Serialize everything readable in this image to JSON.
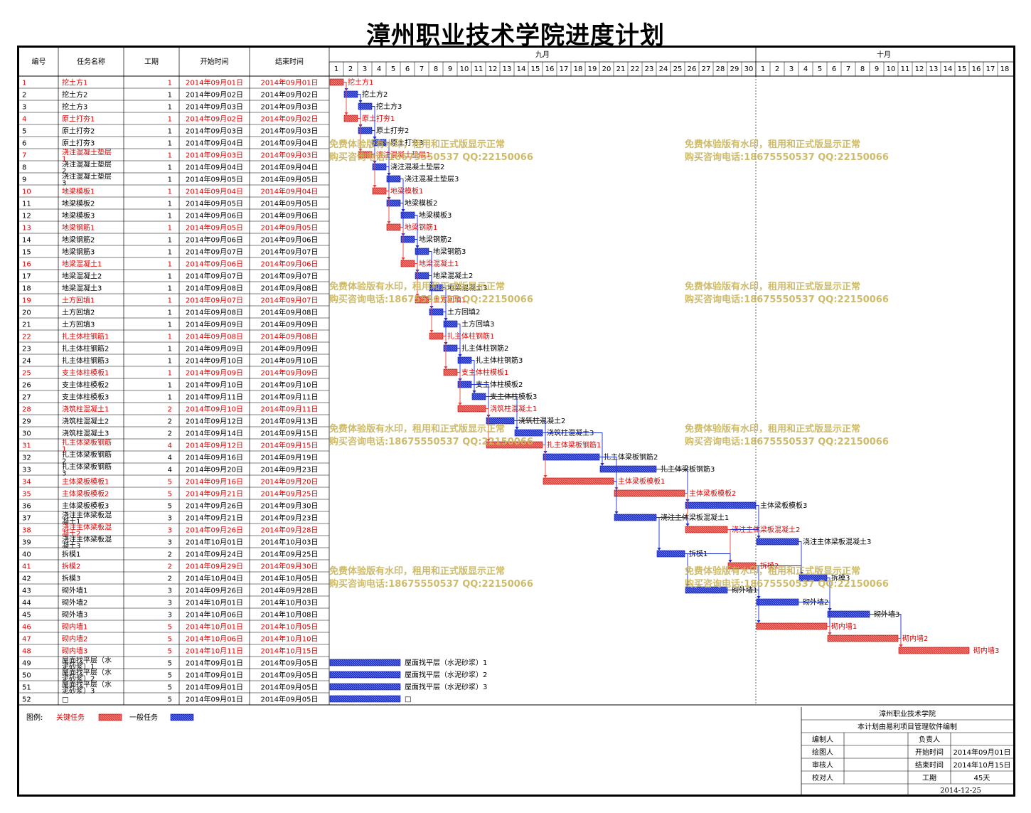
{
  "title": "漳州职业技术学院进度计划",
  "columns": [
    "编号",
    "任务名称",
    "工期",
    "开始时间",
    "结束时间"
  ],
  "months": [
    {
      "label": "九月",
      "days": 30
    },
    {
      "label": "十月",
      "days": 18
    }
  ],
  "colors": {
    "critical": "#e8433b",
    "normal": "#1c2fd1",
    "critical_text": "#e00000",
    "watermark": "#c9b45a"
  },
  "chart_data": {
    "type": "gantt",
    "time_unit": "day",
    "start_date": "2014-09-01",
    "tasks": [
      {
        "id": "1",
        "name": "挖土方1",
        "duration": 1,
        "start": "2014年09月01日",
        "end": "2014年09月01日",
        "critical": true
      },
      {
        "id": "2",
        "name": "挖土方2",
        "duration": 1,
        "start": "2014年09月02日",
        "end": "2014年09月02日",
        "critical": false
      },
      {
        "id": "3",
        "name": "挖土方3",
        "duration": 1,
        "start": "2014年09月03日",
        "end": "2014年09月03日",
        "critical": false
      },
      {
        "id": "4",
        "name": "原土打夯1",
        "duration": 1,
        "start": "2014年09月02日",
        "end": "2014年09月02日",
        "critical": true
      },
      {
        "id": "5",
        "name": "原土打夯2",
        "duration": 1,
        "start": "2014年09月03日",
        "end": "2014年09月03日",
        "critical": false
      },
      {
        "id": "6",
        "name": "原土打夯3",
        "duration": 1,
        "start": "2014年09月04日",
        "end": "2014年09月04日",
        "critical": false
      },
      {
        "id": "7",
        "name": "浇注混凝土垫层1",
        "duration": 1,
        "start": "2014年09月03日",
        "end": "2014年09月03日",
        "critical": true
      },
      {
        "id": "8",
        "name": "浇注混凝土垫层2",
        "duration": 1,
        "start": "2014年09月04日",
        "end": "2014年09月04日",
        "critical": false
      },
      {
        "id": "9",
        "name": "浇注混凝土垫层3",
        "duration": 1,
        "start": "2014年09月05日",
        "end": "2014年09月05日",
        "critical": false
      },
      {
        "id": "10",
        "name": "地梁模板1",
        "duration": 1,
        "start": "2014年09月04日",
        "end": "2014年09月04日",
        "critical": true
      },
      {
        "id": "11",
        "name": "地梁模板2",
        "duration": 1,
        "start": "2014年09月05日",
        "end": "2014年09月05日",
        "critical": false
      },
      {
        "id": "12",
        "name": "地梁模板3",
        "duration": 1,
        "start": "2014年09月06日",
        "end": "2014年09月06日",
        "critical": false
      },
      {
        "id": "13",
        "name": "地梁钢筋1",
        "duration": 1,
        "start": "2014年09月05日",
        "end": "2014年09月05日",
        "critical": true
      },
      {
        "id": "14",
        "name": "地梁钢筋2",
        "duration": 1,
        "start": "2014年09月06日",
        "end": "2014年09月06日",
        "critical": false
      },
      {
        "id": "15",
        "name": "地梁钢筋3",
        "duration": 1,
        "start": "2014年09月07日",
        "end": "2014年09月07日",
        "critical": false
      },
      {
        "id": "16",
        "name": "地梁混凝土1",
        "duration": 1,
        "start": "2014年09月06日",
        "end": "2014年09月06日",
        "critical": true
      },
      {
        "id": "17",
        "name": "地梁混凝土2",
        "duration": 1,
        "start": "2014年09月07日",
        "end": "2014年09月07日",
        "critical": false
      },
      {
        "id": "18",
        "name": "地梁混凝土3",
        "duration": 1,
        "start": "2014年09月08日",
        "end": "2014年09月08日",
        "critical": false
      },
      {
        "id": "19",
        "name": "土方回填1",
        "duration": 1,
        "start": "2014年09月07日",
        "end": "2014年09月07日",
        "critical": true
      },
      {
        "id": "20",
        "name": "土方回填2",
        "duration": 1,
        "start": "2014年09月08日",
        "end": "2014年09月08日",
        "critical": false
      },
      {
        "id": "21",
        "name": "土方回填3",
        "duration": 1,
        "start": "2014年09月09日",
        "end": "2014年09月09日",
        "critical": false
      },
      {
        "id": "22",
        "name": "扎主体柱钢筋1",
        "duration": 1,
        "start": "2014年09月08日",
        "end": "2014年09月08日",
        "critical": true
      },
      {
        "id": "23",
        "name": "扎主体柱钢筋2",
        "duration": 1,
        "start": "2014年09月09日",
        "end": "2014年09月09日",
        "critical": false
      },
      {
        "id": "24",
        "name": "扎主体柱钢筋3",
        "duration": 1,
        "start": "2014年09月10日",
        "end": "2014年09月10日",
        "critical": false
      },
      {
        "id": "25",
        "name": "支主体柱模板1",
        "duration": 1,
        "start": "2014年09月09日",
        "end": "2014年09月09日",
        "critical": true
      },
      {
        "id": "26",
        "name": "支主体柱模板2",
        "duration": 1,
        "start": "2014年09月10日",
        "end": "2014年09月10日",
        "critical": false
      },
      {
        "id": "27",
        "name": "支主体柱模板3",
        "duration": 1,
        "start": "2014年09月11日",
        "end": "2014年09月11日",
        "critical": false
      },
      {
        "id": "28",
        "name": "浇筑柱混凝土1",
        "duration": 2,
        "start": "2014年09月10日",
        "end": "2014年09月11日",
        "critical": true
      },
      {
        "id": "29",
        "name": "浇筑柱混凝土2",
        "duration": 2,
        "start": "2014年09月12日",
        "end": "2014年09月13日",
        "critical": false
      },
      {
        "id": "30",
        "name": "浇筑柱混凝土3",
        "duration": 2,
        "start": "2014年09月14日",
        "end": "2014年09月15日",
        "critical": false
      },
      {
        "id": "31",
        "name": "扎主体梁板钢筋1",
        "duration": 4,
        "start": "2014年09月12日",
        "end": "2014年09月15日",
        "critical": true
      },
      {
        "id": "32",
        "name": "扎主体梁板钢筋2",
        "duration": 4,
        "start": "2014年09月16日",
        "end": "2014年09月19日",
        "critical": false
      },
      {
        "id": "33",
        "name": "扎主体梁板钢筋3",
        "duration": 4,
        "start": "2014年09月20日",
        "end": "2014年09月23日",
        "critical": false
      },
      {
        "id": "34",
        "name": "主体梁板模板1",
        "duration": 5,
        "start": "2014年09月16日",
        "end": "2014年09月20日",
        "critical": true
      },
      {
        "id": "35",
        "name": "主体梁板模板2",
        "duration": 5,
        "start": "2014年09月21日",
        "end": "2014年09月25日",
        "critical": true
      },
      {
        "id": "36",
        "name": "主体梁板模板3",
        "duration": 5,
        "start": "2014年09月26日",
        "end": "2014年09月30日",
        "critical": false
      },
      {
        "id": "37",
        "name": "浇注主体梁板混凝土1",
        "duration": 3,
        "start": "2014年09月21日",
        "end": "2014年09月23日",
        "critical": false
      },
      {
        "id": "38",
        "name": "浇注主体梁板混凝土2",
        "duration": 3,
        "start": "2014年09月26日",
        "end": "2014年09月28日",
        "critical": true
      },
      {
        "id": "39",
        "name": "浇注主体梁板混凝土3",
        "duration": 3,
        "start": "2014年10月01日",
        "end": "2014年10月03日",
        "critical": false
      },
      {
        "id": "40",
        "name": "拆模1",
        "duration": 2,
        "start": "2014年09月24日",
        "end": "2014年09月25日",
        "critical": false
      },
      {
        "id": "41",
        "name": "拆模2",
        "duration": 2,
        "start": "2014年09月29日",
        "end": "2014年09月30日",
        "critical": true
      },
      {
        "id": "42",
        "name": "拆模3",
        "duration": 2,
        "start": "2014年10月04日",
        "end": "2014年10月05日",
        "critical": false
      },
      {
        "id": "43",
        "name": "砌外墙1",
        "duration": 3,
        "start": "2014年09月26日",
        "end": "2014年09月28日",
        "critical": false
      },
      {
        "id": "44",
        "name": "砌外墙2",
        "duration": 3,
        "start": "2014年10月01日",
        "end": "2014年10月03日",
        "critical": false
      },
      {
        "id": "45",
        "name": "砌外墙3",
        "duration": 3,
        "start": "2014年10月06日",
        "end": "2014年10月08日",
        "critical": false
      },
      {
        "id": "46",
        "name": "砌内墙1",
        "duration": 5,
        "start": "2014年10月01日",
        "end": "2014年10月05日",
        "critical": true
      },
      {
        "id": "47",
        "name": "砌内墙2",
        "duration": 5,
        "start": "2014年10月06日",
        "end": "2014年10月10日",
        "critical": true
      },
      {
        "id": "48",
        "name": "砌内墙3",
        "duration": 5,
        "start": "2014年10月11日",
        "end": "2014年10月15日",
        "critical": true
      },
      {
        "id": "49",
        "name": "屋面找平层（水泥砂浆）1",
        "duration": 5,
        "start": "2014年09月01日",
        "end": "2014年09月05日",
        "critical": false
      },
      {
        "id": "50",
        "name": "屋面找平层（水泥砂浆）2",
        "duration": 5,
        "start": "2014年09月01日",
        "end": "2014年09月05日",
        "critical": false
      },
      {
        "id": "51",
        "name": "屋面找平层（水泥砂浆）3",
        "duration": 5,
        "start": "2014年09月01日",
        "end": "2014年09月05日",
        "critical": false
      },
      {
        "id": "52",
        "name": "□",
        "duration": 5,
        "start": "2014年09月01日",
        "end": "2014年09月05日",
        "critical": false
      }
    ]
  },
  "legend": {
    "label": "图例:",
    "critical": "关键任务",
    "normal": "一般任务"
  },
  "watermark": {
    "line1": "免费体验版有水印，租用和正式版显示正常",
    "line2": "购买咨询电话:18675550537 QQ:22150066"
  },
  "infobox": {
    "org": "漳州职业技术学院",
    "note": "本计划由易利项目管理软件编制",
    "rows": [
      [
        "编制人",
        "",
        "负责人",
        ""
      ],
      [
        "绘图人",
        "",
        "开始时间",
        "2014年09月01日"
      ],
      [
        "审核人",
        "",
        "结束时间",
        "2014年10月15日"
      ],
      [
        "校对人",
        "",
        "工期",
        "45天"
      ]
    ],
    "date": "2014-12-25"
  }
}
